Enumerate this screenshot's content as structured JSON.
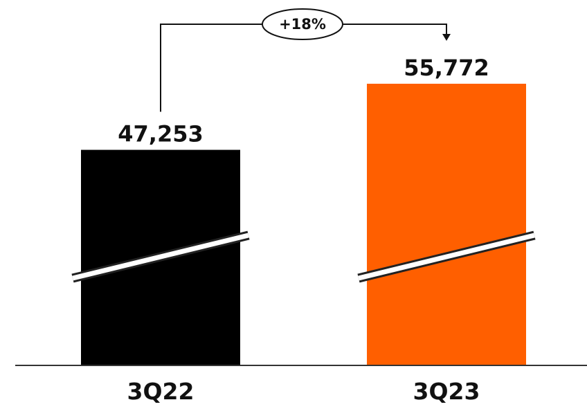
{
  "chart_data": {
    "type": "bar",
    "categories": [
      "3Q22",
      "3Q23"
    ],
    "values": [
      47253,
      55772
    ],
    "value_labels": [
      "47,253",
      "55,772"
    ],
    "bar_colors": [
      "#000000",
      "#FF5F00"
    ],
    "axis_break": true,
    "change_annotation": {
      "label": "+18%",
      "from": "3Q22",
      "to": "3Q23"
    },
    "title": "",
    "xlabel": "",
    "ylabel": "",
    "grid": false,
    "legend": "none"
  }
}
